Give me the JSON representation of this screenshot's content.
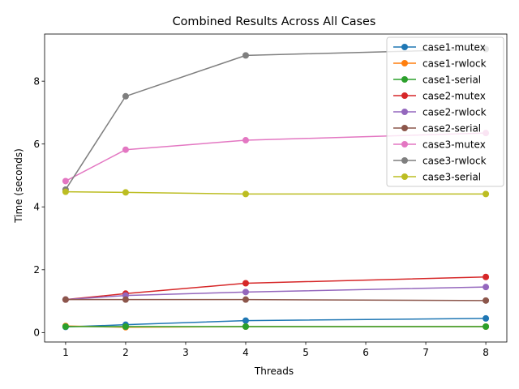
{
  "chart_data": {
    "type": "line",
    "title": "Combined Results Across All Cases",
    "xlabel": "Threads",
    "ylabel": "Time (seconds)",
    "xlim": [
      0.65,
      8.35
    ],
    "ylim": [
      -0.3,
      9.5
    ],
    "xticks": [
      1,
      2,
      3,
      4,
      5,
      6,
      7,
      8
    ],
    "yticks": [
      0,
      2,
      4,
      6,
      8
    ],
    "grid": false,
    "legend_position": "upper right",
    "x": [
      1,
      2,
      4,
      8
    ],
    "series": [
      {
        "name": "case1-mutex",
        "color": "#1f77b4",
        "values": [
          0.18,
          0.25,
          0.38,
          0.45
        ]
      },
      {
        "name": "case1-rwlock",
        "color": "#ff7f0e",
        "values": [
          0.21,
          0.17,
          0.19,
          0.19
        ]
      },
      {
        "name": "case1-serial",
        "color": "#2ca02c",
        "values": [
          0.19,
          0.19,
          0.19,
          0.19
        ]
      },
      {
        "name": "case2-mutex",
        "color": "#d62728",
        "values": [
          1.05,
          1.24,
          1.57,
          1.77
        ]
      },
      {
        "name": "case2-rwlock",
        "color": "#9467bd",
        "values": [
          1.05,
          1.18,
          1.29,
          1.45
        ]
      },
      {
        "name": "case2-serial",
        "color": "#8c564b",
        "values": [
          1.05,
          1.05,
          1.05,
          1.02
        ]
      },
      {
        "name": "case3-mutex",
        "color": "#e377c2",
        "values": [
          4.82,
          5.82,
          6.12,
          6.35
        ]
      },
      {
        "name": "case3-rwlock",
        "color": "#7f7f7f",
        "values": [
          4.55,
          7.52,
          8.82,
          9.02
        ]
      },
      {
        "name": "case3-serial",
        "color": "#bcbd22",
        "values": [
          4.48,
          4.46,
          4.41,
          4.41
        ]
      }
    ]
  }
}
